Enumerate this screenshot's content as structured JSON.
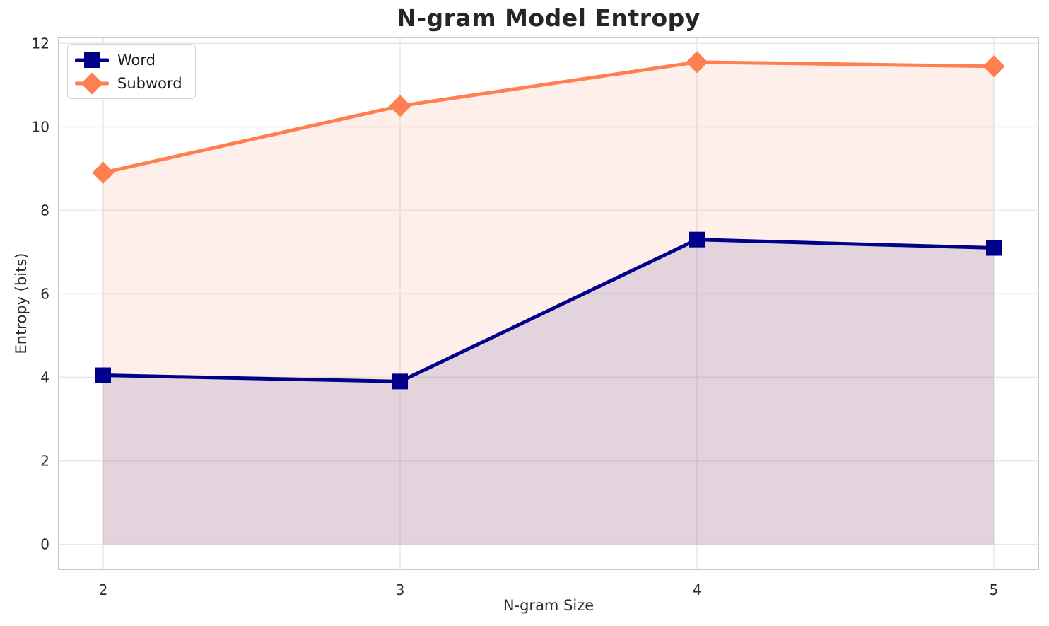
{
  "chart_data": {
    "type": "line",
    "title": "N-gram Model Entropy",
    "xlabel": "N-gram Size",
    "ylabel": "Entropy (bits)",
    "x": [
      2,
      3,
      4,
      5
    ],
    "series": [
      {
        "name": "Word",
        "values": [
          4.05,
          3.9,
          7.3,
          7.1
        ],
        "color": "#00008B",
        "marker": "square",
        "fill_to_zero": true,
        "fill_alpha": 0.12
      },
      {
        "name": "Subword",
        "values": [
          8.9,
          10.5,
          11.55,
          11.45
        ],
        "color": "#FF7F50",
        "marker": "diamond",
        "fill_to_zero": true,
        "fill_alpha": 0.12
      }
    ],
    "xticks": [
      2,
      3,
      4,
      5
    ],
    "yticks": [
      0,
      2,
      4,
      6,
      8,
      10,
      12
    ],
    "xlim": [
      1.85,
      5.15
    ],
    "ylim": [
      -0.6,
      12.14
    ],
    "grid": true,
    "legend_position": "upper-left",
    "line_width": 5,
    "marker_size": 22,
    "colors": {
      "grid": "#e9e9e9",
      "spine": "#c9c9c9",
      "tick_text": "#2a2a2a",
      "background": "#ffffff"
    }
  }
}
